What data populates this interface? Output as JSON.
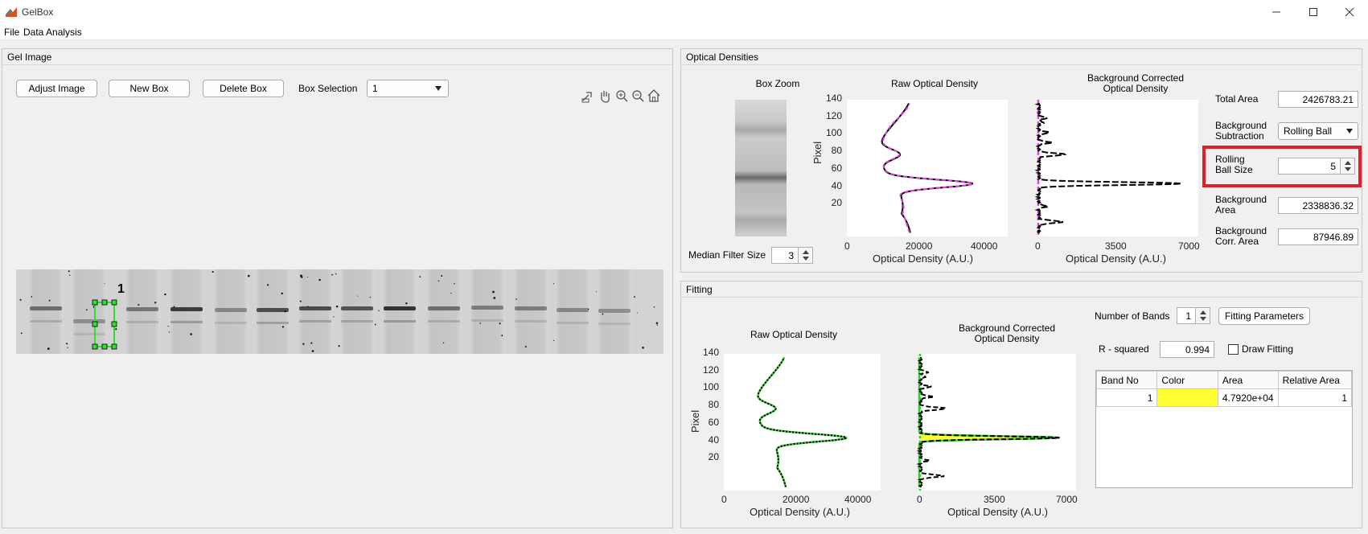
{
  "window": {
    "title": "GelBox",
    "controls": [
      "minimize",
      "maximize",
      "close"
    ]
  },
  "menu": [
    "File",
    "Data Analysis"
  ],
  "gel_panel": {
    "title": "Gel Image",
    "buttons": {
      "adjust": "Adjust Image",
      "new_box": "New Box",
      "delete_box": "Delete Box"
    },
    "box_selection_label": "Box Selection",
    "box_selection_value": "1",
    "box_label": "1",
    "toolbar_icons": [
      "export-icon",
      "pan-hand-icon",
      "zoom-in-icon",
      "zoom-out-icon",
      "home-icon"
    ]
  },
  "od_panel": {
    "title": "Optical Densities",
    "box_zoom_title": "Box Zoom",
    "raw_title": "Raw Optical Density",
    "bgc_title_line1": "Background Corrected",
    "bgc_title_line2": "Optical Density",
    "median_filter_label": "Median Filter Size",
    "median_filter_value": "3",
    "raw_x_ticks": [
      "0",
      "20000",
      "40000"
    ],
    "bgc_x_ticks": [
      "0",
      "3500",
      "7000"
    ],
    "y_ticks": [
      "140",
      "120",
      "100",
      "80",
      "60",
      "40",
      "20"
    ],
    "x_label": "Optical Density (A.U.)",
    "y_label": "Pixel",
    "total_area_label": "Total Area",
    "total_area_value": "2426783.21",
    "bg_sub_label_1": "Background",
    "bg_sub_label_2": "Subtraction",
    "bg_sub_value": "Rolling Ball",
    "rolling_label_1": "Rolling",
    "rolling_label_2": "Ball Size",
    "rolling_value": "5",
    "bg_area_label_1": "Background",
    "bg_area_label_2": "Area",
    "bg_area_value": "2338836.32",
    "bg_corr_label_1": "Background",
    "bg_corr_label_2": "Corr. Area",
    "bg_corr_value": "87946.89",
    "highlight_color": "#e0202c"
  },
  "fit_panel": {
    "title": "Fitting",
    "raw_title": "Raw Optical Density",
    "bgc_title_line1": "Background Corrected",
    "bgc_title_line2": "Optical Density",
    "num_bands_label": "Number of Bands",
    "num_bands_value": "1",
    "fit_params_button": "Fitting Parameters",
    "r2_label": "R - squared",
    "r2_value": "0.994",
    "draw_fitting_label": "Draw Fitting",
    "draw_fitting_checked": false,
    "table_headers": [
      "Band No",
      "Color",
      "Area",
      "Relative Area"
    ],
    "table_rows": [
      {
        "band_no": "1",
        "color": "#ffff33",
        "area": "4.7920e+04",
        "relative_area": "1"
      }
    ]
  },
  "colors": {
    "raw_fit_line": "#e040e0",
    "fit_line": "#33cc33",
    "band_fill": "#ffff33",
    "box_outline": "#33dd33"
  }
}
